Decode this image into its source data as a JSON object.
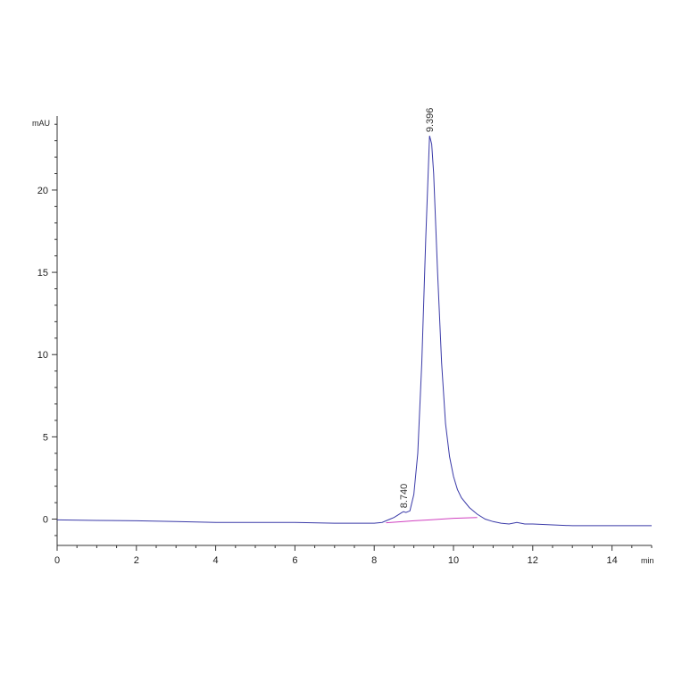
{
  "chart_data": {
    "type": "line",
    "title": "",
    "ylabel": "mAU",
    "xlabel": "min",
    "xlim": [
      0,
      15
    ],
    "ylim": [
      -1.6,
      24.5
    ],
    "x_ticks": [
      0,
      2,
      4,
      6,
      8,
      10,
      12,
      14
    ],
    "y_ticks": [
      0,
      5,
      10,
      15,
      20
    ],
    "x_tick_labels": [
      "0",
      "2",
      "4",
      "6",
      "8",
      "10",
      "12",
      "14"
    ],
    "y_tick_labels": [
      "0",
      "5",
      "10",
      "15",
      "20"
    ],
    "grid": false,
    "colors": {
      "signal": "#3a3aa8",
      "baseline": "#d040c0",
      "axis": "#333333"
    },
    "series": [
      {
        "x": [
          0,
          1,
          2,
          3,
          4,
          5,
          6,
          7,
          7.5,
          8.0,
          8.2,
          8.4,
          8.5,
          8.6,
          8.7,
          8.74,
          8.8,
          8.9,
          9.0,
          9.1,
          9.2,
          9.3,
          9.396,
          9.45,
          9.5,
          9.6,
          9.7,
          9.8,
          9.9,
          10.0,
          10.1,
          10.2,
          10.4,
          10.6,
          10.8,
          11.0,
          11.2,
          11.4,
          11.6,
          11.8,
          12.0,
          12.5,
          13,
          14,
          15
        ],
        "values": [
          -0.05,
          -0.08,
          -0.1,
          -0.15,
          -0.2,
          -0.2,
          -0.2,
          -0.25,
          -0.25,
          -0.25,
          -0.2,
          0.0,
          0.1,
          0.25,
          0.4,
          0.45,
          0.4,
          0.5,
          1.5,
          4.0,
          9.5,
          17.0,
          23.3,
          22.8,
          21.0,
          15.0,
          9.5,
          5.8,
          3.8,
          2.6,
          1.8,
          1.3,
          0.7,
          0.3,
          0.0,
          -0.15,
          -0.25,
          -0.3,
          -0.2,
          -0.3,
          -0.3,
          -0.35,
          -0.4,
          -0.4,
          -0.4
        ]
      }
    ],
    "baseline": {
      "x": [
        8.3,
        8.74,
        9.0,
        9.4,
        10.0,
        10.6
      ],
      "values": [
        -0.22,
        -0.15,
        -0.1,
        -0.05,
        0.05,
        0.1
      ]
    },
    "annotations": [
      {
        "label": "8.740",
        "x": 8.74,
        "y": 0.45
      },
      {
        "label": "9.396",
        "x": 9.396,
        "y": 23.3
      }
    ]
  }
}
